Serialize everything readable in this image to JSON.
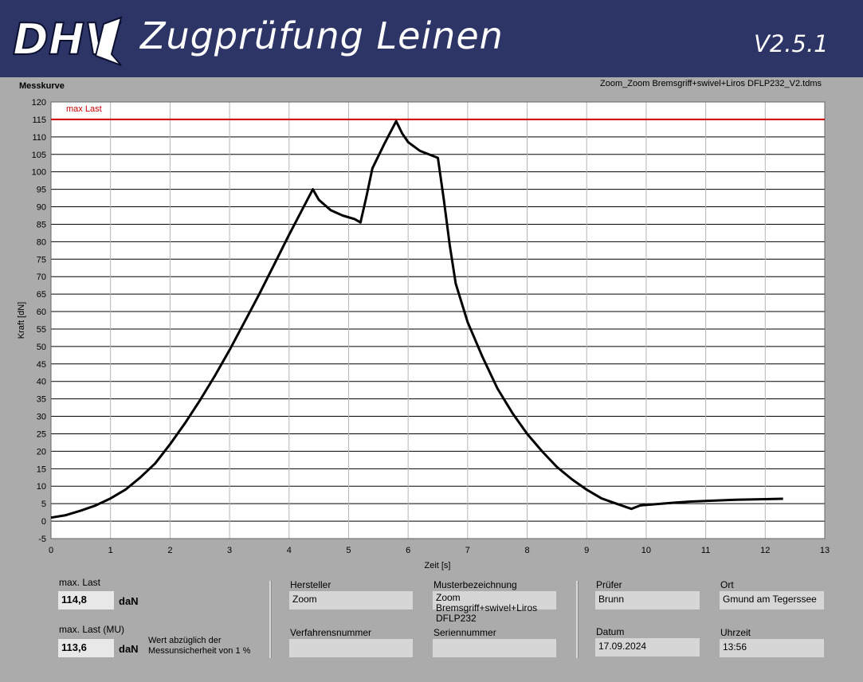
{
  "header": {
    "logo_text": "DHV",
    "title": "Zugprüfung Leinen",
    "version": "V2.5.1",
    "background": "#2d3466"
  },
  "chart_panel": {
    "caption": "Messkurve",
    "file_name": "Zoom_Zoom Bremsgriff+swivel+Liros DFLP232_V2.tdms"
  },
  "chart_data": {
    "type": "line",
    "xlabel": "Zeit [s]",
    "ylabel": "Kraft [dN]",
    "xlim": [
      0,
      13
    ],
    "ylim": [
      -5,
      120
    ],
    "x_ticks": [
      0,
      1,
      2,
      3,
      4,
      5,
      6,
      7,
      8,
      9,
      10,
      11,
      12,
      13
    ],
    "y_ticks": [
      -5,
      0,
      5,
      10,
      15,
      20,
      25,
      30,
      35,
      40,
      45,
      50,
      55,
      60,
      65,
      70,
      75,
      80,
      85,
      90,
      95,
      100,
      105,
      110,
      115,
      120
    ],
    "grid": true,
    "annotations": [
      {
        "text": "max Last",
        "y": 115,
        "color": "#cc0000"
      }
    ],
    "series": [
      {
        "color": "#000000",
        "x": [
          0,
          0.25,
          0.5,
          0.75,
          1.0,
          1.25,
          1.5,
          1.75,
          2.0,
          2.25,
          2.5,
          2.75,
          3.0,
          3.25,
          3.5,
          3.75,
          4.0,
          4.2,
          4.4,
          4.5,
          4.7,
          4.9,
          5.1,
          5.2,
          5.3,
          5.4,
          5.6,
          5.8,
          5.9,
          6.0,
          6.2,
          6.5,
          6.6,
          6.7,
          6.8,
          7.0,
          7.25,
          7.5,
          7.75,
          8.0,
          8.25,
          8.5,
          8.75,
          9.0,
          9.25,
          9.5,
          9.75,
          9.9,
          10.25,
          10.5,
          10.75,
          11.0,
          11.5,
          12.0,
          12.3
        ],
        "y": [
          1,
          1.7,
          3,
          4.5,
          6.5,
          9,
          12.5,
          16.5,
          22,
          28,
          34.5,
          41.5,
          49,
          57,
          65,
          73.5,
          82,
          88.5,
          95,
          92,
          89,
          87.5,
          86.5,
          85.5,
          93,
          101,
          108,
          114.5,
          111,
          108.5,
          106,
          104,
          92,
          79,
          68,
          57,
          47,
          38,
          31,
          25,
          20,
          15.5,
          12,
          9,
          6.5,
          5,
          3.5,
          4.5,
          5,
          5.3,
          5.6,
          5.8,
          6.1,
          6.3,
          6.4
        ]
      }
    ]
  },
  "fields": {
    "max_last": {
      "label": "max. Last",
      "value": "114,8",
      "unit": "daN"
    },
    "max_last_mu": {
      "label": "max. Last (MU)",
      "value": "113,6",
      "unit": "daN",
      "note": "Wert abzüglich der Messunsicherheit von 1 %"
    },
    "hersteller": {
      "label": "Hersteller",
      "value": "Zoom"
    },
    "verfahrensnummer": {
      "label": "Verfahrensnummer",
      "value": ""
    },
    "musterbezeichnung": {
      "label": "Musterbezeichnung",
      "value": "Zoom Bremsgriff+swivel+Liros DFLP232"
    },
    "seriennummer": {
      "label": "Seriennummer",
      "value": ""
    },
    "pruefer": {
      "label": "Prüfer",
      "value": "Brunn"
    },
    "datum": {
      "label": "Datum",
      "value": "17.09.2024"
    },
    "ort": {
      "label": "Ort",
      "value": "Gmund am Tegerssee"
    },
    "uhrzeit": {
      "label": "Uhrzeit",
      "value": "13:56"
    }
  }
}
